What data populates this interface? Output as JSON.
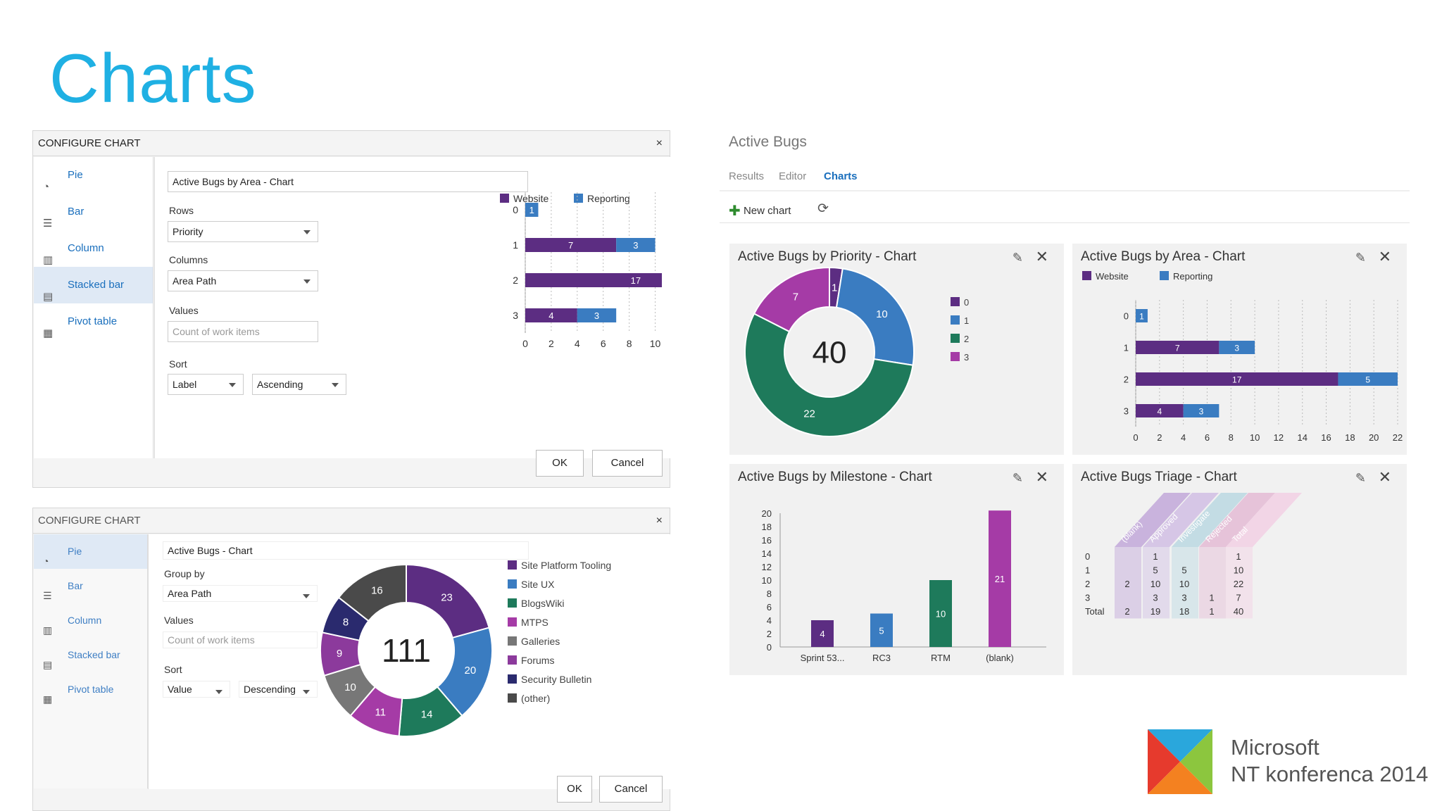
{
  "slide_title": "Charts",
  "dialog1": {
    "header": "CONFIGURE CHART",
    "close": "×",
    "types": [
      "Pie",
      "Bar",
      "Column",
      "Stacked bar",
      "Pivot table"
    ],
    "selected": 3,
    "chart_name": "Active Bugs by Area - Chart",
    "rows_label": "Rows",
    "rows_value": "Priority",
    "columns_label": "Columns",
    "columns_value": "Area Path",
    "values_label": "Values",
    "values_placeholder": "Count of work items",
    "sort_label": "Sort",
    "sort_field": "Label",
    "sort_dir": "Ascending",
    "ok": "OK",
    "cancel": "Cancel"
  },
  "dialog2": {
    "header": "CONFIGURE CHART",
    "close": "×",
    "types": [
      "Pie",
      "Bar",
      "Column",
      "Stacked bar",
      "Pivot table"
    ],
    "selected": 0,
    "chart_name": "Active Bugs  - Chart",
    "group_label": "Group by",
    "group_value": "Area Path",
    "values_label": "Values",
    "values_placeholder": "Count of work items",
    "sort_label": "Sort",
    "sort_field": "Value",
    "sort_dir": "Descending",
    "ok": "OK",
    "cancel": "Cancel"
  },
  "query": {
    "title": "Active Bugs",
    "tabs": [
      "Results",
      "Editor",
      "Charts"
    ],
    "active_tab": 2,
    "new_chart": "New chart"
  },
  "tiles": {
    "priority_title": "Active Bugs by Priority - Chart",
    "area_title": "Active Bugs by Area - Chart",
    "milestone_title": "Active Bugs by Milestone - Chart",
    "triage_title": "Active Bugs Triage - Chart"
  },
  "pivot": {
    "headers": [
      "(blank)",
      "Approved",
      "Investigate",
      "Rejected",
      "Total"
    ],
    "rows": [
      [
        "0",
        "",
        "1",
        "",
        "",
        "1"
      ],
      [
        "1",
        "",
        "5",
        "5",
        "",
        "10"
      ],
      [
        "2",
        "2",
        "10",
        "10",
        "",
        "22"
      ],
      [
        "3",
        "",
        "3",
        "3",
        "1",
        "7"
      ],
      [
        "Total",
        "2",
        "19",
        "18",
        "1",
        "40"
      ]
    ]
  },
  "branding": {
    "line1": "Microsoft",
    "line2": "NT konferenca 2014"
  },
  "colors": {
    "purple": "#5c2d82",
    "blue": "#3a7cc1",
    "teal": "#1e7a5b",
    "magenta": "#a53ba6",
    "gray": "#777777",
    "dark": "#4a4a4a",
    "navy": "#2a2a6e",
    "accent": "#1fb0e3"
  },
  "chart_data": [
    {
      "type": "bar",
      "title": "Active Bugs by Area - Chart",
      "categories": [
        "0",
        "1",
        "2",
        "3"
      ],
      "stacked": true,
      "series": [
        {
          "name": "Website",
          "values": [
            0,
            7,
            17,
            4
          ]
        },
        {
          "name": "Reporting",
          "values": [
            1,
            3,
            5,
            3
          ]
        }
      ],
      "xlim": [
        0,
        22
      ],
      "xticks": [
        0,
        2,
        4,
        6,
        8,
        10,
        12,
        14,
        16,
        18,
        20,
        22
      ],
      "legend": "top"
    },
    {
      "type": "pie",
      "title": "Active Bugs by Priority - Chart",
      "center_label": "40",
      "categories": [
        "0",
        "1",
        "2",
        "3"
      ],
      "values": [
        1,
        10,
        22,
        7
      ],
      "legend": "right"
    },
    {
      "type": "bar",
      "title": "Active Bugs by Milestone - Chart",
      "categories": [
        "Sprint 53...",
        "RC3",
        "RTM",
        "(blank)"
      ],
      "values": [
        4,
        5,
        10,
        21
      ],
      "ylim": [
        0,
        20
      ],
      "yticks": [
        0,
        2,
        4,
        6,
        8,
        10,
        12,
        14,
        16,
        18,
        20
      ]
    },
    {
      "type": "pie",
      "title": "Active Bugs  - Chart",
      "center_label": "111",
      "categories": [
        "Site Platform Tooling",
        "Site UX",
        "BlogsWiki",
        "MTPS",
        "Galleries",
        "Forums",
        "Security Bulletin",
        "(other)"
      ],
      "values": [
        23,
        20,
        14,
        11,
        10,
        9,
        8,
        16
      ],
      "legend": "right"
    }
  ]
}
